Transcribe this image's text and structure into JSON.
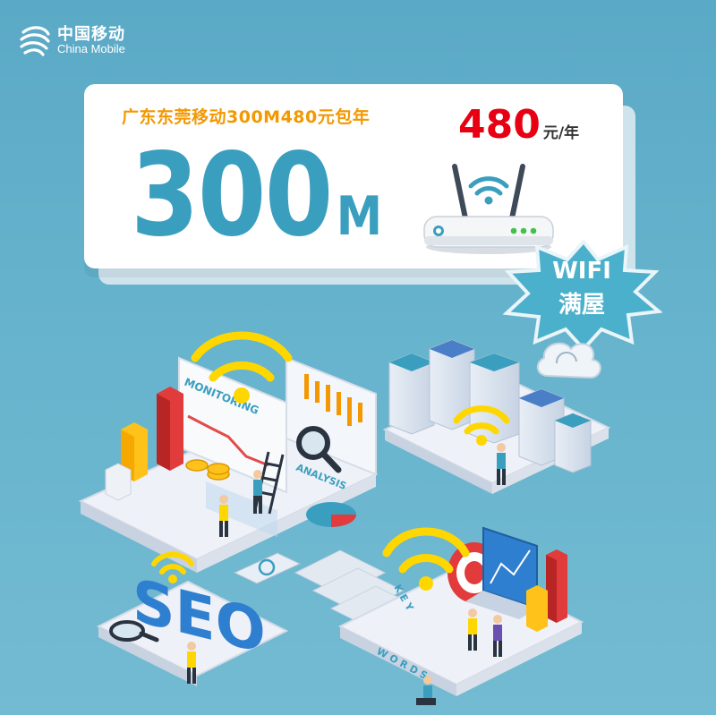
{
  "brand": {
    "name_cn": "中国移动",
    "name_en": "China Mobile",
    "color": "#ffffff"
  },
  "card": {
    "subtitle": "广东东莞移动300M480元包年",
    "price_value": "480",
    "price_unit": "元/年",
    "speed_value": "300",
    "speed_unit": "M"
  },
  "badge": {
    "line1": "WIFI",
    "line2": "满屋",
    "color": "#4ab0cc"
  },
  "illustration": {
    "monitoring_label": "MONITORING",
    "analysis_label": "ANALYSIS",
    "seo_label": "SEO",
    "keywords_letters": "K E Y",
    "words_letters": "W O R D S"
  },
  "colors": {
    "accent_blue": "#3a9fbf",
    "price_red": "#e60012",
    "subtitle_orange": "#f39800",
    "background": "#66b3cd"
  }
}
